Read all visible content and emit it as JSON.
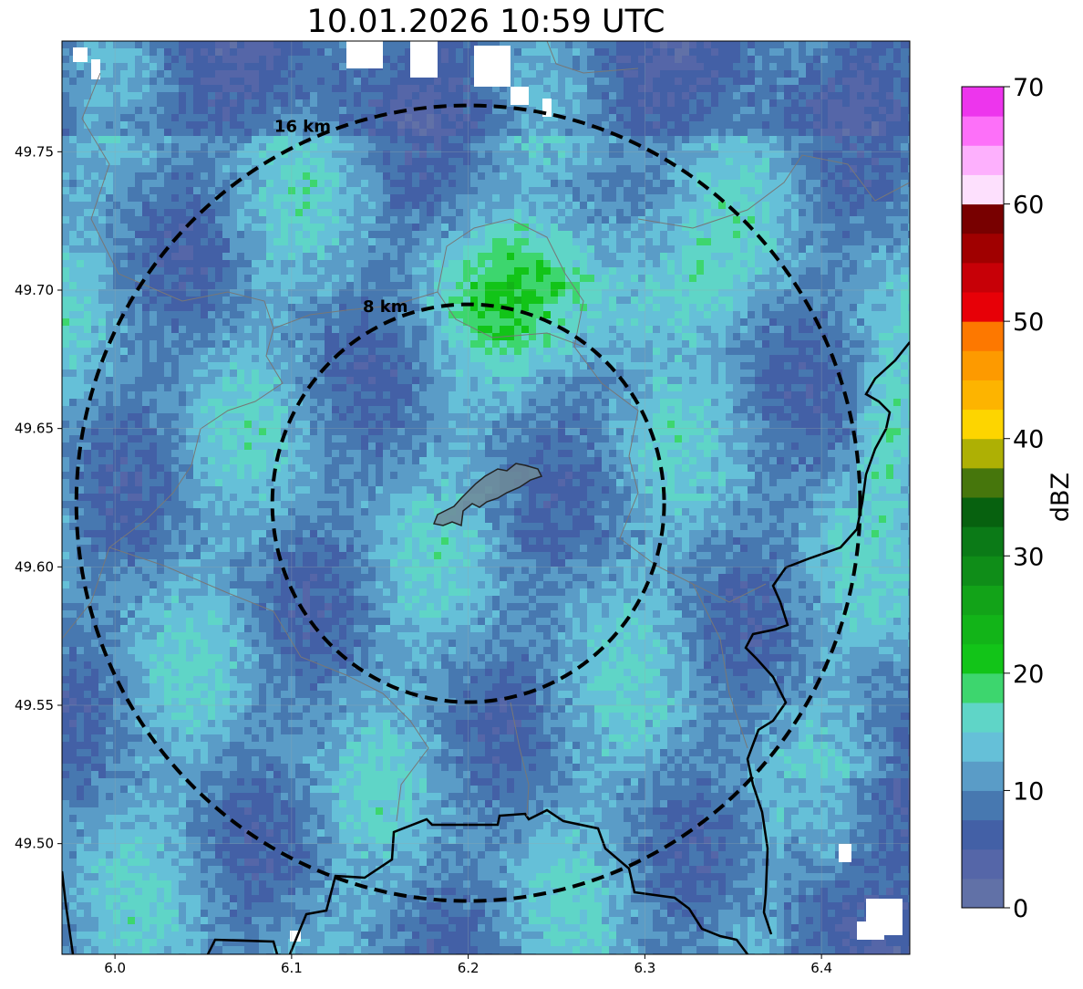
{
  "title": "10.01.2026 10:59 UTC",
  "map": {
    "x_ticks": [
      {
        "value": 6.0,
        "label": "6.0"
      },
      {
        "value": 6.1,
        "label": "6.1"
      },
      {
        "value": 6.2,
        "label": "6.2"
      },
      {
        "value": 6.3,
        "label": "6.3"
      },
      {
        "value": 6.4,
        "label": "6.4"
      }
    ],
    "y_ticks": [
      {
        "value": 49.5,
        "label": "49.50"
      },
      {
        "value": 49.55,
        "label": "49.55"
      },
      {
        "value": 49.6,
        "label": "49.60"
      },
      {
        "value": 49.65,
        "label": "49.65"
      },
      {
        "value": 49.7,
        "label": "49.70"
      },
      {
        "value": 49.75,
        "label": "49.75"
      }
    ],
    "lon_range": [
      5.97,
      6.45
    ],
    "lat_range": [
      49.46,
      49.79
    ],
    "center": {
      "lon": 6.2,
      "lat": 49.623
    },
    "rings": [
      {
        "label": "8 km",
        "radius_km": 8
      },
      {
        "label": "16 km",
        "radius_km": 16
      }
    ]
  },
  "colorbar": {
    "label": "dBZ",
    "ticks": [
      "0",
      "10",
      "20",
      "30",
      "40",
      "50",
      "60",
      "70"
    ],
    "range": [
      0,
      70
    ],
    "colors": [
      "#6171a7",
      "#5566a8",
      "#4360a6",
      "#4778b0",
      "#5a9cc7",
      "#65c0d8",
      "#5fd5c7",
      "#3dd66e",
      "#12c418",
      "#12b418",
      "#12a318",
      "#0f8d18",
      "#0b7a17",
      "#07610f",
      "#46760c",
      "#aeb004",
      "#fdd500",
      "#fdb400",
      "#fd9a00",
      "#fd7800",
      "#e70007",
      "#c70007",
      "#a00000",
      "#780000",
      "#fde0fd",
      "#fdb0fd",
      "#fd70f9",
      "#ed35ed"
    ]
  }
}
